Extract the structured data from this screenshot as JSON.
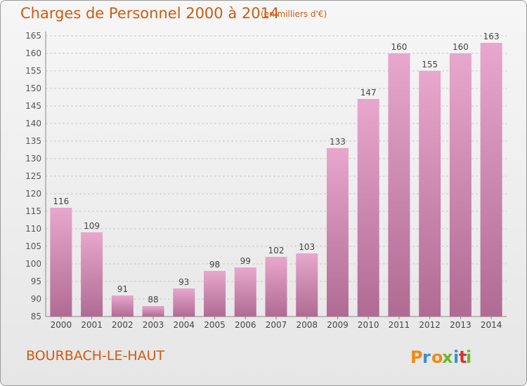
{
  "header": {
    "title": "Charges de Personnel 2000 à 2014",
    "subtitle": "(en milliers d'€)"
  },
  "footer": {
    "commune": "BOURBACH-LE-HAUT",
    "logo_text": "Proxiti"
  },
  "colors": {
    "title": "#d05a10",
    "bar_light": "#e8a7cc",
    "bar_dark": "#b06b93",
    "grid": "#c8c8c8",
    "logo_letters": [
      "#f08a12",
      "#3a8fd4",
      "#f08a12",
      "#6cb82c",
      "#3a8fd4",
      "#d8332a",
      "#6cb82c"
    ]
  },
  "chart_data": {
    "type": "bar",
    "title": "Charges de Personnel 2000 à 2014",
    "subtitle": "(en milliers d'€)",
    "categories": [
      "2000",
      "2001",
      "2002",
      "2003",
      "2004",
      "2005",
      "2006",
      "2007",
      "2008",
      "2009",
      "2010",
      "2011",
      "2012",
      "2013",
      "2014"
    ],
    "values": [
      116,
      109,
      91,
      88,
      93,
      98,
      99,
      102,
      103,
      133,
      147,
      160,
      155,
      160,
      163
    ],
    "ylim": [
      85,
      165
    ],
    "yticks": [
      85,
      90,
      95,
      100,
      105,
      110,
      115,
      120,
      125,
      130,
      135,
      140,
      145,
      150,
      155,
      160,
      165
    ],
    "grid": true,
    "xlabel": "",
    "ylabel": ""
  }
}
